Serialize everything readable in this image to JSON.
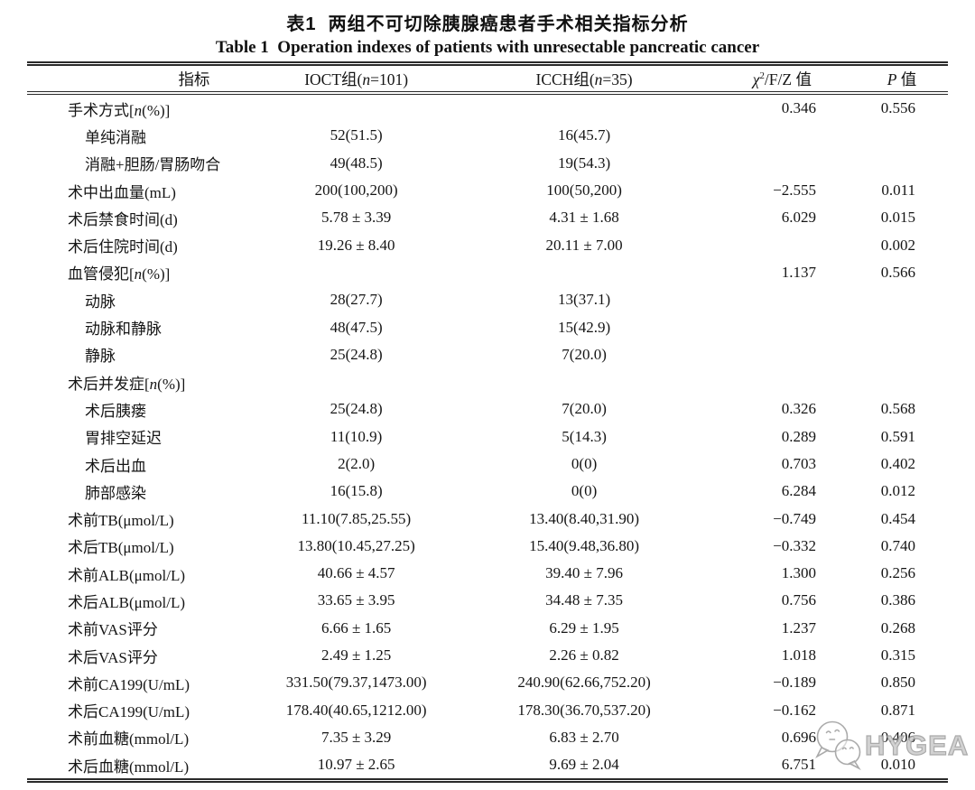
{
  "caption": {
    "zh": "表1  两组不可切除胰腺癌患者手术相关指标分析",
    "en": "Table 1  Operation indexes of patients with unresectable pancreatic cancer"
  },
  "table": {
    "headers": [
      "指标",
      "IOCT组(<i>n</i>=101)",
      "ICCH组(<i>n</i>=35)",
      "<i>χ</i><sup>2</sup>/F/Z 值",
      "<i>P</i> 值"
    ],
    "rows": [
      {
        "label_html": "手术方式[<i>n</i>(%)]",
        "indent": 0,
        "ioct": "",
        "icch": "",
        "stat": "0.346",
        "p": "0.556"
      },
      {
        "label_html": "单纯消融",
        "indent": 1,
        "ioct": "52(51.5)",
        "icch": "16(45.7)",
        "stat": "",
        "p": ""
      },
      {
        "label_html": "消融+胆肠/胃肠吻合",
        "indent": 1,
        "ioct": "49(48.5)",
        "icch": "19(54.3)",
        "stat": "",
        "p": ""
      },
      {
        "label_html": "术中出血量(mL)",
        "indent": 0,
        "ioct": "200(100,200)",
        "icch": "100(50,200)",
        "stat": "−2.555",
        "p": "0.011"
      },
      {
        "label_html": "术后禁食时间(d)",
        "indent": 0,
        "ioct": "5.78 ± 3.39",
        "icch": "4.31 ± 1.68",
        "stat": "6.029",
        "p": "0.015"
      },
      {
        "label_html": "术后住院时间(d)",
        "indent": 0,
        "ioct": "19.26 ± 8.40",
        "icch": "20.11 ± 7.00",
        "stat": "",
        "p": "0.002"
      },
      {
        "label_html": "血管侵犯[<i>n</i>(%)]",
        "indent": 0,
        "ioct": "",
        "icch": "",
        "stat": "1.137",
        "p": "0.566"
      },
      {
        "label_html": "动脉",
        "indent": 1,
        "ioct": "28(27.7)",
        "icch": "13(37.1)",
        "stat": "",
        "p": ""
      },
      {
        "label_html": "动脉和静脉",
        "indent": 1,
        "ioct": "48(47.5)",
        "icch": "15(42.9)",
        "stat": "",
        "p": ""
      },
      {
        "label_html": "静脉",
        "indent": 1,
        "ioct": "25(24.8)",
        "icch": "7(20.0)",
        "stat": "",
        "p": ""
      },
      {
        "label_html": "术后并发症[<i>n</i>(%)]",
        "indent": 0,
        "ioct": "",
        "icch": "",
        "stat": "",
        "p": ""
      },
      {
        "label_html": "术后胰瘘",
        "indent": 1,
        "ioct": "25(24.8)",
        "icch": "7(20.0)",
        "stat": "0.326",
        "p": "0.568"
      },
      {
        "label_html": "胃排空延迟",
        "indent": 1,
        "ioct": "11(10.9)",
        "icch": "5(14.3)",
        "stat": "0.289",
        "p": "0.591"
      },
      {
        "label_html": "术后出血",
        "indent": 1,
        "ioct": "2(2.0)",
        "icch": "0(0)",
        "stat": "0.703",
        "p": "0.402"
      },
      {
        "label_html": "肺部感染",
        "indent": 1,
        "ioct": "16(15.8)",
        "icch": "0(0)",
        "stat": "6.284",
        "p": "0.012"
      },
      {
        "label_html": "术前TB(μmol/L)",
        "indent": 0,
        "ioct": "11.10(7.85,25.55)",
        "icch": "13.40(8.40,31.90)",
        "stat": "−0.749",
        "p": "0.454"
      },
      {
        "label_html": "术后TB(μmol/L)",
        "indent": 0,
        "ioct": "13.80(10.45,27.25)",
        "icch": "15.40(9.48,36.80)",
        "stat": "−0.332",
        "p": "0.740"
      },
      {
        "label_html": "术前ALB(μmol/L)",
        "indent": 0,
        "ioct": "40.66 ± 4.57",
        "icch": "39.40 ± 7.96",
        "stat": "1.300",
        "p": "0.256"
      },
      {
        "label_html": "术后ALB(μmol/L)",
        "indent": 0,
        "ioct": "33.65 ± 3.95",
        "icch": "34.48 ± 7.35",
        "stat": "0.756",
        "p": "0.386"
      },
      {
        "label_html": "术前VAS评分",
        "indent": 0,
        "ioct": "6.66 ± 1.65",
        "icch": "6.29 ± 1.95",
        "stat": "1.237",
        "p": "0.268"
      },
      {
        "label_html": "术后VAS评分",
        "indent": 0,
        "ioct": "2.49 ± 1.25",
        "icch": "2.26 ± 0.82",
        "stat": "1.018",
        "p": "0.315"
      },
      {
        "label_html": "术前CA199(U/mL)",
        "indent": 0,
        "ioct": "331.50(79.37,1473.00)",
        "icch": "240.90(62.66,752.20)",
        "stat": "−0.189",
        "p": "0.850"
      },
      {
        "label_html": "术后CA199(U/mL)",
        "indent": 0,
        "ioct": "178.40(40.65,1212.00)",
        "icch": "178.30(36.70,537.20)",
        "stat": "−0.162",
        "p": "0.871"
      },
      {
        "label_html": "术前血糖(mmol/L)",
        "indent": 0,
        "ioct": "7.35 ± 3.29",
        "icch": "6.83 ± 2.70",
        "stat": "0.696",
        "p": "0.406"
      },
      {
        "label_html": "术后血糖(mmol/L)",
        "indent": 0,
        "ioct": "10.97 ± 2.65",
        "icch": "9.69 ± 2.04",
        "stat": "6.751",
        "p": "0.010"
      }
    ]
  },
  "watermark": {
    "text": "HYGEA",
    "icon": "wechat-bubbles-icon",
    "color": "#9c9c9c"
  }
}
